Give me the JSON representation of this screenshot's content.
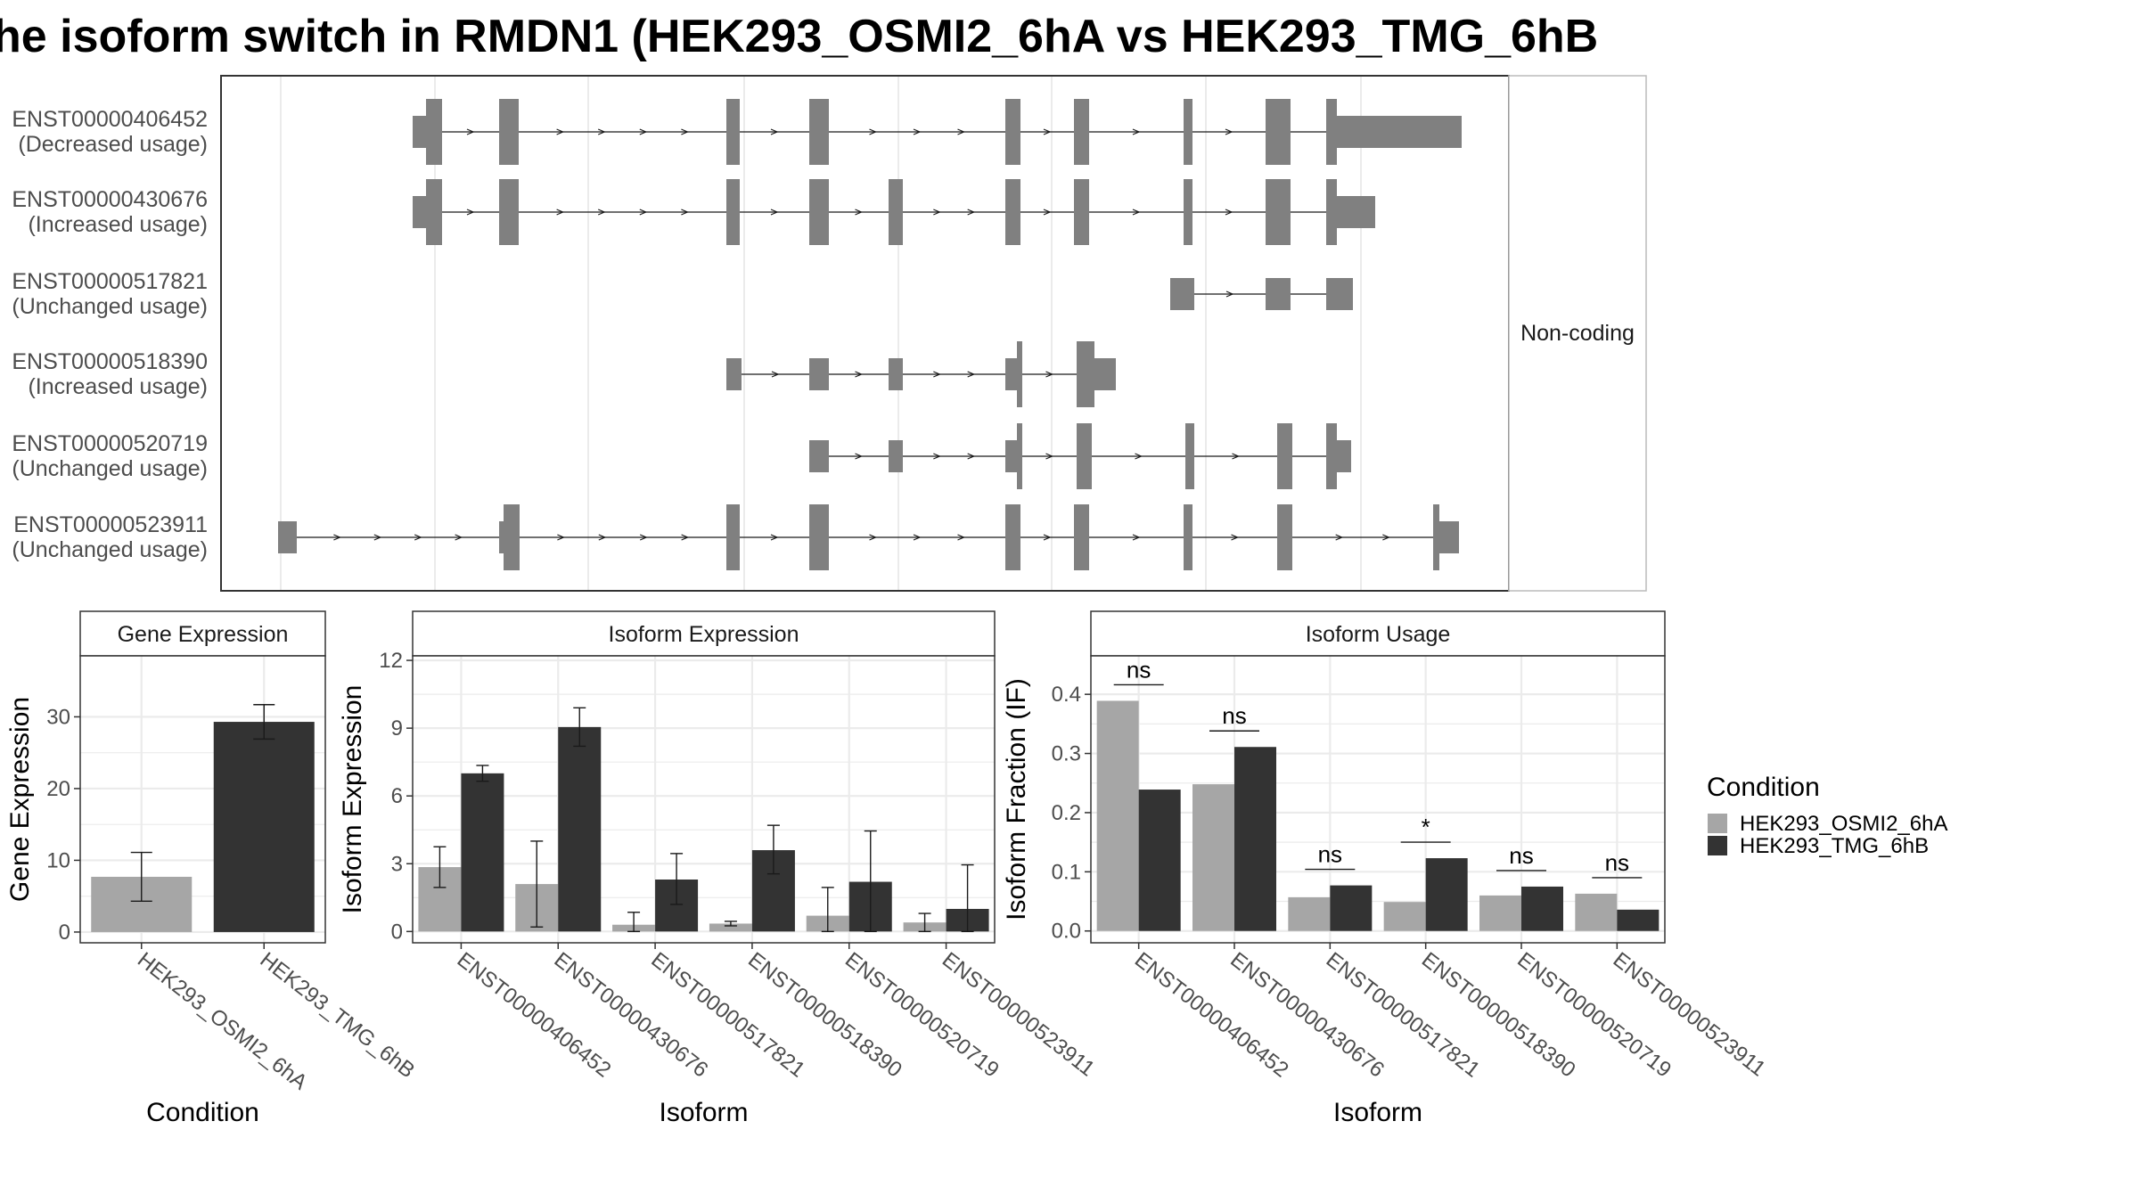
{
  "title": "he isoform switch in RMDN1 (HEK293_OSMI2_6hA vs HEK293_TMG_6hB",
  "colors": {
    "condition_a": "#a6a6a6",
    "condition_b": "#333333",
    "exon": "#808080",
    "panel_border": "#333333",
    "grid": "#ebebeb"
  },
  "structure": {
    "strip_label": "Non-coding",
    "transcripts": [
      {
        "id": "ENST00000406452",
        "usage": "(Decreased usage)"
      },
      {
        "id": "ENST00000430676",
        "usage": "(Increased usage)"
      },
      {
        "id": "ENST00000517821",
        "usage": "(Unchanged usage)"
      },
      {
        "id": "ENST00000518390",
        "usage": "(Increased usage)"
      },
      {
        "id": "ENST00000520719",
        "usage": "(Unchanged usage)"
      },
      {
        "id": "ENST00000523911",
        "usage": "(Unchanged usage)"
      }
    ]
  },
  "legend": {
    "title": "Condition",
    "items": [
      "HEK293_OSMI2_6hA",
      "HEK293_TMG_6hB"
    ]
  },
  "chart_data": [
    {
      "type": "bar",
      "panel": "Gene Expression",
      "xlabel": "Condition",
      "ylabel": "Gene Expression",
      "categories": [
        "HEK293_OSMI2_6hA",
        "HEK293_TMG_6hB"
      ],
      "values": [
        7.7,
        29.3
      ],
      "errors": [
        [
          4.3,
          11.1
        ],
        [
          26.9,
          31.7
        ]
      ],
      "ylim": [
        -1.5,
        38.5
      ],
      "yticks": [
        0,
        10,
        20,
        30
      ],
      "grid": true
    },
    {
      "type": "bar",
      "panel": "Isoform Expression",
      "xlabel": "Isoform",
      "ylabel": "Isoform Expression",
      "categories": [
        "ENST00000406452",
        "ENST00000430676",
        "ENST00000517821",
        "ENST00000518390",
        "ENST00000520719",
        "ENST00000523911"
      ],
      "series": [
        {
          "name": "HEK293_OSMI2_6hA",
          "values": [
            2.85,
            2.1,
            0.3,
            0.35,
            0.7,
            0.4
          ],
          "errors": [
            [
              1.95,
              3.75
            ],
            [
              0.2,
              4.0
            ],
            [
              0.0,
              0.85
            ],
            [
              0.25,
              0.45
            ],
            [
              0.0,
              1.95
            ],
            [
              0.0,
              0.8
            ]
          ]
        },
        {
          "name": "HEK293_TMG_6hB",
          "values": [
            7.0,
            9.05,
            2.3,
            3.6,
            2.2,
            1.0
          ],
          "errors": [
            [
              6.65,
              7.35
            ],
            [
              8.2,
              9.9
            ],
            [
              1.2,
              3.45
            ],
            [
              2.55,
              4.7
            ],
            [
              0.0,
              4.45
            ],
            [
              0.0,
              2.95
            ]
          ]
        }
      ],
      "ylim": [
        -0.5,
        12.2
      ],
      "yticks": [
        0,
        3,
        6,
        9,
        12
      ],
      "grid": true
    },
    {
      "type": "bar",
      "panel": "Isoform Usage",
      "xlabel": "Isoform",
      "ylabel": "Isoform Fraction (IF)",
      "categories": [
        "ENST00000406452",
        "ENST00000430676",
        "ENST00000517821",
        "ENST00000518390",
        "ENST00000520719",
        "ENST00000523911"
      ],
      "series": [
        {
          "name": "HEK293_OSMI2_6hA",
          "values": [
            0.389,
            0.248,
            0.057,
            0.049,
            0.06,
            0.063
          ]
        },
        {
          "name": "HEK293_TMG_6hB",
          "values": [
            0.239,
            0.311,
            0.077,
            0.123,
            0.075,
            0.036
          ]
        }
      ],
      "significance": [
        "ns",
        "ns",
        "ns",
        "*",
        "ns",
        "ns"
      ],
      "ylim": [
        -0.02,
        0.465
      ],
      "yticks": [
        0.0,
        0.1,
        0.2,
        0.3,
        0.4
      ],
      "grid": true
    }
  ]
}
